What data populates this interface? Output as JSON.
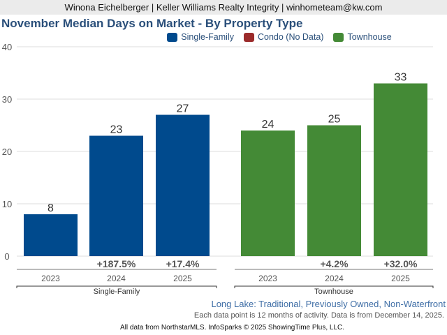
{
  "header": {
    "agent_line": "Winona Eichelberger | Keller Williams Realty Integrity | winhometeam@kw.com"
  },
  "chart_data": {
    "type": "bar",
    "title": "November Median Days on Market - By Property Type",
    "xlabel": "",
    "ylabel": "",
    "ylim": [
      0,
      40
    ],
    "yticks": [
      0,
      10,
      20,
      30,
      40
    ],
    "grid": true,
    "legend_position": "top-center",
    "legend": [
      {
        "name": "Single-Family",
        "color": "#004a8d"
      },
      {
        "name": "Condo (No Data)",
        "color": "#9b2b2b"
      },
      {
        "name": "Townhouse",
        "color": "#448a36"
      }
    ],
    "groups": [
      {
        "name": "Single-Family",
        "color": "#004a8d",
        "categories": [
          "2023",
          "2024",
          "2025"
        ],
        "values": [
          8,
          23,
          27
        ],
        "changes": [
          "",
          "+187.5%",
          "+17.4%"
        ]
      },
      {
        "name": "Townhouse",
        "color": "#448a36",
        "categories": [
          "2023",
          "2024",
          "2025"
        ],
        "values": [
          24,
          25,
          33
        ],
        "changes": [
          "",
          "+4.2%",
          "+32.0%"
        ]
      }
    ]
  },
  "footer": {
    "area": "Long Lake: Traditional, Previously Owned, Non-Waterfront",
    "note": "Each data point is 12 months of activity. Data is from December 14, 2025.",
    "source": "All data from NorthstarMLS. InfoSparks © 2025 ShowingTime Plus, LLC."
  }
}
